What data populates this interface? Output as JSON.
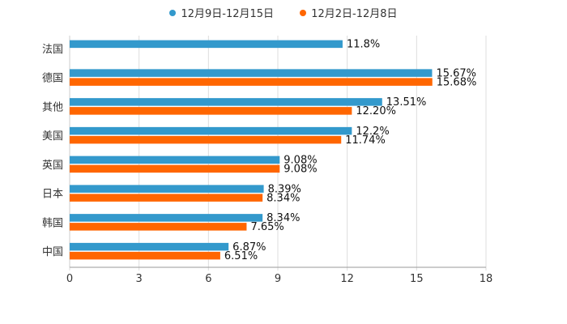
{
  "chart_data": {
    "type": "bar",
    "orientation": "horizontal",
    "title": "",
    "xlabel": "",
    "ylabel": "",
    "categories": [
      "法国",
      "德国",
      "其他",
      "美国",
      "英国",
      "日本",
      "韩国",
      "中国"
    ],
    "series": [
      {
        "name": "12月9日-12月15日",
        "color": "#3399CC",
        "values": [
          11.8,
          15.67,
          13.51,
          12.2,
          9.08,
          8.39,
          8.34,
          6.87
        ],
        "labels": [
          "11.8%",
          "15.67%",
          "13.51%",
          "12.2%",
          "9.08%",
          "8.39%",
          "8.34%",
          "6.87%"
        ]
      },
      {
        "name": "12月2日-12月8日",
        "color": "#FF6600",
        "values": [
          null,
          15.68,
          12.2,
          11.74,
          9.08,
          8.34,
          7.65,
          6.51
        ],
        "labels": [
          "",
          "15.68%",
          "12.20%",
          "11.74%",
          "9.08%",
          "8.34%",
          "7.65%",
          "6.51%"
        ]
      }
    ],
    "xlim": [
      0,
      18
    ],
    "xticks": [
      0,
      3,
      6,
      9,
      12,
      15,
      18
    ],
    "grid": true,
    "legend_position": "top-center"
  }
}
